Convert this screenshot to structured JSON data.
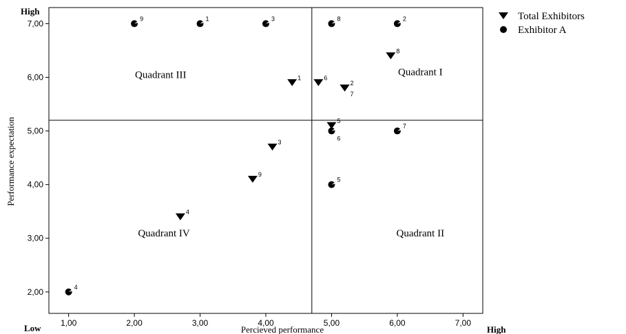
{
  "chart_data": {
    "type": "scatter",
    "xlabel": "Percieved performance",
    "ylabel": "Performance expectation",
    "x_ticks": [
      "1,00",
      "2,00",
      "3,00",
      "4,00",
      "5,00",
      "6,00",
      "7,00"
    ],
    "y_ticks": [
      "2,00",
      "3,00",
      "4,00",
      "5,00",
      "6,00",
      "7,00"
    ],
    "xlim": [
      0.7,
      7.3
    ],
    "ylim": [
      1.6,
      7.3
    ],
    "grid": false,
    "legend_position": "top-right",
    "axis_end_labels": {
      "y_high": "High",
      "x_low": "Low",
      "x_high": "High"
    },
    "reference_lines": {
      "x": 4.7,
      "y": 5.2
    },
    "quadrant_labels": [
      {
        "text": "Quadrant I",
        "x": 6.35,
        "y": 6.1
      },
      {
        "text": "Quadrant II",
        "x": 6.35,
        "y": 3.1
      },
      {
        "text": "Quadrant III",
        "x": 2.4,
        "y": 6.05
      },
      {
        "text": "Quadrant IV",
        "x": 2.45,
        "y": 3.1
      }
    ],
    "series": [
      {
        "name": "Total Exhibitors",
        "marker": "triangle-down",
        "points": [
          {
            "label": "1",
            "x": 4.4,
            "y": 5.9
          },
          {
            "label": "2",
            "x": 5.2,
            "y": 5.8
          },
          {
            "label": "3",
            "x": 4.1,
            "y": 4.7
          },
          {
            "label": "4",
            "x": 2.7,
            "y": 3.4
          },
          {
            "label": "5",
            "x": 5.0,
            "y": 5.1
          },
          {
            "label": "6",
            "x": 4.8,
            "y": 5.9
          },
          {
            "label": "7",
            "x": 5.2,
            "y": 5.8
          },
          {
            "label": "8",
            "x": 5.9,
            "y": 6.4
          },
          {
            "label": "9",
            "x": 3.8,
            "y": 4.1
          }
        ]
      },
      {
        "name": "Exhibitor A",
        "marker": "circle",
        "points": [
          {
            "label": "1",
            "x": 3.0,
            "y": 7.0
          },
          {
            "label": "2",
            "x": 6.0,
            "y": 7.0
          },
          {
            "label": "3",
            "x": 4.0,
            "y": 7.0
          },
          {
            "label": "4",
            "x": 1.0,
            "y": 2.0
          },
          {
            "label": "5",
            "x": 5.0,
            "y": 4.0
          },
          {
            "label": "6",
            "x": 5.0,
            "y": 5.0
          },
          {
            "label": "7",
            "x": 6.0,
            "y": 5.0
          },
          {
            "label": "8",
            "x": 5.0,
            "y": 7.0
          },
          {
            "label": "9",
            "x": 2.0,
            "y": 7.0
          }
        ]
      }
    ]
  }
}
